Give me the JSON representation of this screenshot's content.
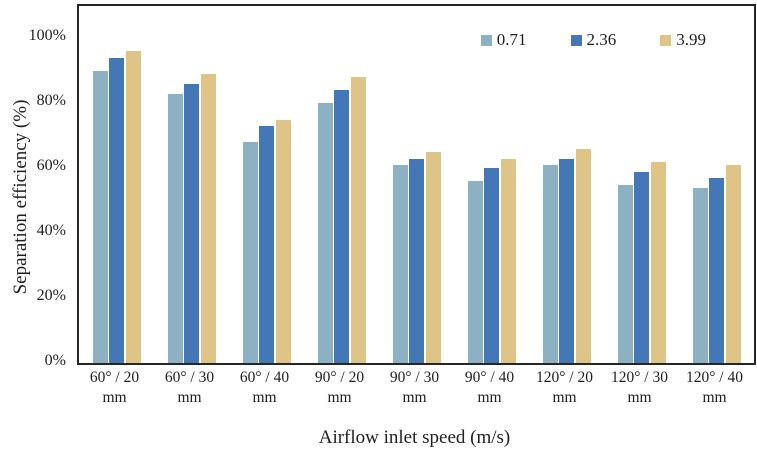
{
  "chart_data": {
    "type": "bar",
    "title": "",
    "xlabel": "Airflow inlet speed (m/s)",
    "ylabel": "Separation efficiency (%)",
    "ylim": [
      0,
      110
    ],
    "yticks": [
      {
        "value": 0,
        "label": "0%"
      },
      {
        "value": 20,
        "label": "20%"
      },
      {
        "value": 40,
        "label": "40%"
      },
      {
        "value": 60,
        "label": "60%"
      },
      {
        "value": 80,
        "label": "80%"
      },
      {
        "value": 100,
        "label": "100%"
      }
    ],
    "grid": false,
    "legend_position": "top-right-inside",
    "categories": [
      {
        "top": "60° / 20",
        "bottom": "mm"
      },
      {
        "top": "60° / 30",
        "bottom": "mm"
      },
      {
        "top": "60° / 40",
        "bottom": "mm"
      },
      {
        "top": "90° / 20",
        "bottom": "mm"
      },
      {
        "top": "90° / 30",
        "bottom": "mm"
      },
      {
        "top": "90° / 40",
        "bottom": "mm"
      },
      {
        "top": "120° / 20",
        "bottom": "mm"
      },
      {
        "top": "120° / 30",
        "bottom": "mm"
      },
      {
        "top": "120° / 40",
        "bottom": "mm"
      }
    ],
    "series": [
      {
        "name": "0.71",
        "color": "#8BB1C3",
        "values": [
          90,
          83,
          68,
          80,
          61,
          56,
          61,
          55,
          54
        ]
      },
      {
        "name": "2.36",
        "color": "#4377B5",
        "values": [
          94,
          86,
          73,
          84,
          63,
          60,
          63,
          59,
          57
        ]
      },
      {
        "name": "3.99",
        "color": "#DFC488",
        "values": [
          96,
          89,
          75,
          88,
          65,
          63,
          66,
          62,
          61
        ]
      }
    ],
    "colors": {
      "background": "#ffffff",
      "axis": "#262626",
      "text": "#1f1f1f"
    }
  }
}
